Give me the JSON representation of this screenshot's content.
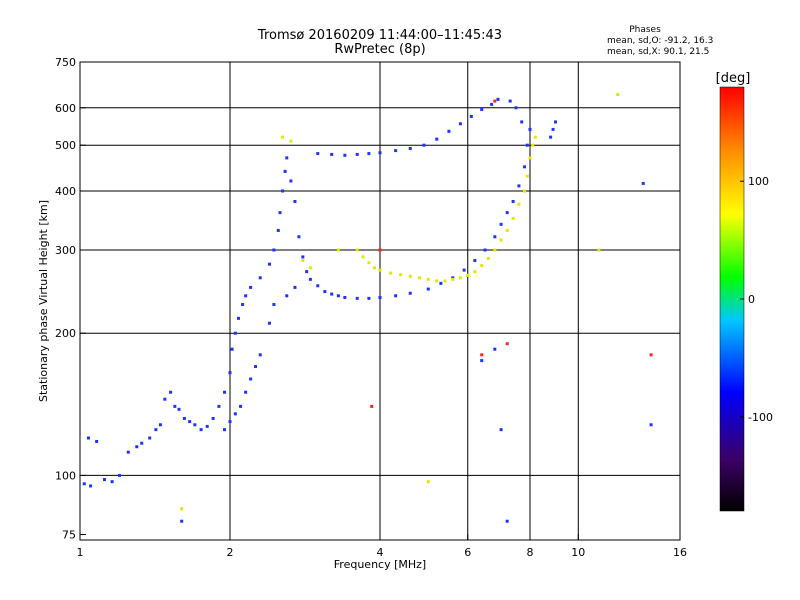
{
  "chart_data": {
    "type": "scatter",
    "title": "Tromsø 20160209 11:44:00–11:45:43",
    "subtitle": "RwPretec (8p)",
    "xlabel": "Frequency [MHz]",
    "ylabel": "Stationary phase Virtual Height [km]",
    "x_scale": "log",
    "y_scale": "log",
    "xlim": [
      1,
      16
    ],
    "ylim": [
      73,
      750
    ],
    "x_ticks": [
      1,
      2,
      4,
      6,
      8,
      10,
      16
    ],
    "x_tick_labels": [
      "1",
      "2",
      "4",
      "6",
      "8",
      "10",
      "16"
    ],
    "y_ticks": [
      75,
      100,
      200,
      300,
      400,
      500,
      600,
      750
    ],
    "y_tick_labels": [
      "75",
      "100",
      "200",
      "300",
      "400",
      "500",
      "600",
      "750"
    ],
    "grid_x": [
      2,
      4,
      6,
      8,
      10
    ],
    "grid_y": [
      100,
      200,
      300,
      400,
      500,
      600
    ],
    "grid": true,
    "phase_info": {
      "title": "Phases",
      "line_o": "mean, sd,O: -91.2, 16.3",
      "line_x": "mean, sd,X: 90.1, 21.5"
    },
    "colorbar": {
      "label": "[deg]",
      "range": [
        -180,
        180
      ],
      "ticks": [
        100,
        0,
        -100
      ],
      "tick_labels": [
        "100",
        "0",
        "-100"
      ],
      "colors": [
        "#000000",
        "#3c0064",
        "#0000ff",
        "#00c8ff",
        "#00ff00",
        "#ffff00",
        "#ff8c00",
        "#ff0000"
      ]
    },
    "series": [
      {
        "color_hint": "blue",
        "points": [
          [
            1.02,
            96
          ],
          [
            1.05,
            95
          ],
          [
            1.04,
            120
          ],
          [
            1.08,
            118
          ],
          [
            1.12,
            98
          ],
          [
            1.16,
            97
          ],
          [
            1.2,
            100
          ],
          [
            1.25,
            112
          ],
          [
            1.3,
            115
          ],
          [
            1.33,
            117
          ],
          [
            1.38,
            120
          ],
          [
            1.42,
            125
          ],
          [
            1.45,
            128
          ],
          [
            1.48,
            145
          ],
          [
            1.52,
            150
          ],
          [
            1.55,
            140
          ],
          [
            1.58,
            138
          ],
          [
            1.62,
            132
          ],
          [
            1.66,
            130
          ],
          [
            1.7,
            128
          ],
          [
            1.75,
            125
          ],
          [
            1.8,
            127
          ],
          [
            1.85,
            132
          ],
          [
            1.9,
            140
          ],
          [
            1.95,
            150
          ],
          [
            2.0,
            165
          ],
          [
            2.02,
            185
          ],
          [
            2.05,
            200
          ],
          [
            2.08,
            215
          ],
          [
            2.12,
            230
          ],
          [
            2.15,
            240
          ],
          [
            2.2,
            250
          ],
          [
            2.3,
            262
          ],
          [
            2.4,
            280
          ],
          [
            2.45,
            300
          ],
          [
            2.5,
            330
          ],
          [
            2.52,
            360
          ],
          [
            2.55,
            400
          ],
          [
            2.58,
            440
          ],
          [
            2.6,
            470
          ],
          [
            2.65,
            420
          ],
          [
            2.7,
            380
          ],
          [
            2.75,
            320
          ],
          [
            2.8,
            290
          ],
          [
            2.85,
            270
          ],
          [
            2.9,
            260
          ],
          [
            3.0,
            252
          ],
          [
            3.1,
            245
          ],
          [
            3.2,
            242
          ],
          [
            3.3,
            240
          ],
          [
            3.4,
            238
          ],
          [
            3.6,
            237
          ],
          [
            3.8,
            237
          ],
          [
            4.0,
            238
          ],
          [
            4.3,
            240
          ],
          [
            4.6,
            243
          ],
          [
            5.0,
            248
          ],
          [
            5.3,
            255
          ],
          [
            5.6,
            262
          ],
          [
            5.9,
            272
          ],
          [
            6.2,
            285
          ],
          [
            6.5,
            300
          ],
          [
            6.8,
            320
          ],
          [
            7.0,
            340
          ],
          [
            7.2,
            360
          ],
          [
            7.4,
            380
          ],
          [
            7.6,
            410
          ],
          [
            7.8,
            450
          ],
          [
            7.9,
            500
          ],
          [
            8.0,
            540
          ],
          [
            7.7,
            560
          ],
          [
            7.5,
            600
          ],
          [
            7.3,
            620
          ],
          [
            3.0,
            480
          ],
          [
            3.2,
            478
          ],
          [
            3.4,
            476
          ],
          [
            3.6,
            478
          ],
          [
            3.8,
            480
          ],
          [
            4.0,
            482
          ],
          [
            4.3,
            487
          ],
          [
            4.6,
            492
          ],
          [
            4.9,
            500
          ],
          [
            5.2,
            515
          ],
          [
            5.5,
            535
          ],
          [
            5.8,
            555
          ],
          [
            6.1,
            575
          ],
          [
            6.4,
            595
          ],
          [
            6.7,
            610
          ],
          [
            6.9,
            625
          ],
          [
            8.8,
            520
          ],
          [
            8.9,
            540
          ],
          [
            9.0,
            560
          ],
          [
            2.3,
            180
          ],
          [
            2.25,
            170
          ],
          [
            2.2,
            160
          ],
          [
            2.15,
            150
          ],
          [
            2.1,
            140
          ],
          [
            2.05,
            135
          ],
          [
            2.0,
            130
          ],
          [
            1.95,
            125
          ],
          [
            2.4,
            210
          ],
          [
            2.45,
            230
          ],
          [
            2.6,
            240
          ],
          [
            2.7,
            250
          ],
          [
            14.0,
            128
          ],
          [
            6.8,
            185
          ],
          [
            6.4,
            175
          ],
          [
            7.0,
            125
          ],
          [
            13.5,
            415
          ],
          [
            1.6,
            80
          ],
          [
            7.2,
            80
          ]
        ]
      },
      {
        "color_hint": "yellow",
        "points": [
          [
            3.6,
            300
          ],
          [
            3.7,
            290
          ],
          [
            3.8,
            282
          ],
          [
            3.9,
            275
          ],
          [
            4.0,
            272
          ],
          [
            4.2,
            268
          ],
          [
            4.4,
            266
          ],
          [
            4.6,
            264
          ],
          [
            4.8,
            262
          ],
          [
            5.0,
            260
          ],
          [
            5.2,
            258
          ],
          [
            5.4,
            258
          ],
          [
            5.6,
            260
          ],
          [
            5.8,
            262
          ],
          [
            6.0,
            265
          ],
          [
            6.2,
            270
          ],
          [
            6.4,
            278
          ],
          [
            6.6,
            288
          ],
          [
            6.8,
            300
          ],
          [
            7.0,
            315
          ],
          [
            7.2,
            330
          ],
          [
            7.4,
            350
          ],
          [
            7.6,
            375
          ],
          [
            7.8,
            400
          ],
          [
            7.9,
            430
          ],
          [
            8.0,
            470
          ],
          [
            8.1,
            500
          ],
          [
            8.2,
            520
          ],
          [
            2.55,
            520
          ],
          [
            2.65,
            510
          ],
          [
            2.8,
            285
          ],
          [
            2.9,
            275
          ],
          [
            1.6,
            85
          ],
          [
            12.0,
            640
          ],
          [
            11.0,
            300
          ],
          [
            5.0,
            97
          ],
          [
            3.3,
            300
          ]
        ]
      },
      {
        "color_hint": "red",
        "points": [
          [
            3.85,
            140
          ],
          [
            6.4,
            180
          ],
          [
            14.0,
            180
          ],
          [
            7.2,
            190
          ],
          [
            6.8,
            620
          ],
          [
            4.0,
            300
          ]
        ]
      }
    ]
  }
}
